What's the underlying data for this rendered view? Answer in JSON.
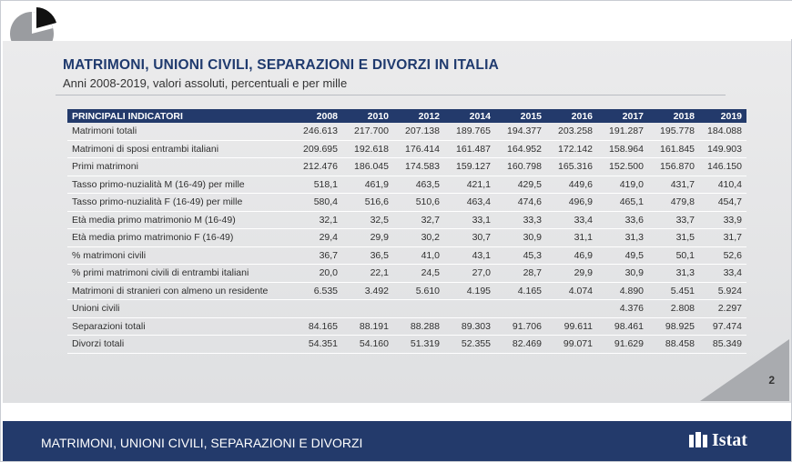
{
  "header": {
    "title": "MATRIMONI, UNIONI CIVILI, SEPARAZIONI E DIVORZI IN ITALIA",
    "subtitle": "Anni 2008-2019, valori assoluti, percentuali e per mille"
  },
  "table": {
    "columns": [
      "PRINCIPALI INDICATORI",
      "2008",
      "2010",
      "2012",
      "2014",
      "2015",
      "2016",
      "2017",
      "2018",
      "2019"
    ],
    "rows": [
      [
        "Matrimoni totali",
        "246.613",
        "217.700",
        "207.138",
        "189.765",
        "194.377",
        "203.258",
        "191.287",
        "195.778",
        "184.088"
      ],
      [
        "Matrimoni di sposi entrambi italiani",
        "209.695",
        "192.618",
        "176.414",
        "161.487",
        "164.952",
        "172.142",
        "158.964",
        "161.845",
        "149.903"
      ],
      [
        "Primi matrimoni",
        "212.476",
        "186.045",
        "174.583",
        "159.127",
        "160.798",
        "165.316",
        "152.500",
        "156.870",
        "146.150"
      ],
      [
        "Tasso primo-nuzialità M (16-49) per mille",
        "518,1",
        "461,9",
        "463,5",
        "421,1",
        "429,5",
        "449,6",
        "419,0",
        "431,7",
        "410,4"
      ],
      [
        "Tasso primo-nuzialità F (16-49) per mille",
        "580,4",
        "516,6",
        "510,6",
        "463,4",
        "474,6",
        "496,9",
        "465,1",
        "479,8",
        "454,7"
      ],
      [
        "Età media primo matrimonio M (16-49)",
        "32,1",
        "32,5",
        "32,7",
        "33,1",
        "33,3",
        "33,4",
        "33,6",
        "33,7",
        "33,9"
      ],
      [
        "Età media primo matrimonio F (16-49)",
        "29,4",
        "29,9",
        "30,2",
        "30,7",
        "30,9",
        "31,1",
        "31,3",
        "31,5",
        "31,7"
      ],
      [
        "% matrimoni civili",
        "36,7",
        "36,5",
        "41,0",
        "43,1",
        "45,3",
        "46,9",
        "49,5",
        "50,1",
        "52,6"
      ],
      [
        "% primi matrimoni civili di entrambi italiani",
        "20,0",
        "22,1",
        "24,5",
        "27,0",
        "28,7",
        "29,9",
        "30,9",
        "31,3",
        "33,4"
      ],
      [
        "Matrimoni di stranieri con almeno un residente",
        "6.535",
        "3.492",
        "5.610",
        "4.195",
        "4.165",
        "4.074",
        "4.890",
        "5.451",
        "5.924"
      ],
      [
        "Unioni civili",
        "",
        "",
        "",
        "",
        "",
        "",
        "4.376",
        "2.808",
        "2.297"
      ],
      [
        "Separazioni totali",
        "84.165",
        "88.191",
        "88.288",
        "89.303",
        "91.706",
        "99.611",
        "98.461",
        "98.925",
        "97.474"
      ],
      [
        "Divorzi totali",
        "54.351",
        "54.160",
        "51.319",
        "52.355",
        "82.469",
        "99.071",
        "91.629",
        "88.458",
        "85.349"
      ]
    ]
  },
  "page_number": "2",
  "footer": {
    "text": "MATRIMONI, UNIONI CIVILI, SEPARAZIONI E DIVORZI",
    "logo_text": "Istat"
  },
  "colors": {
    "navy": "#233a6b",
    "title_blue": "#1f3a6e",
    "panel_gray": "#e4e5e7"
  }
}
